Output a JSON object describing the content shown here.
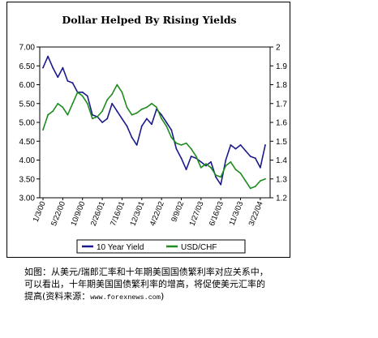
{
  "chart_data": {
    "type": "line",
    "title": "Dollar Helped By Rising Yields",
    "x_tick_labels": [
      "1/3/00",
      "5/22/00",
      "10/9/00",
      "2/26/01",
      "7/16/01",
      "12/3/01",
      "4/22/02",
      "9/9/02",
      "1/27/03",
      "6/16/03",
      "11/3/03",
      "3/22/04"
    ],
    "y_left": {
      "range": [
        3.0,
        7.0
      ],
      "ticks": [
        "3.00",
        "3.50",
        "4.00",
        "4.50",
        "5.00",
        "5.50",
        "6.00",
        "6.50",
        "7.00"
      ]
    },
    "y_right": {
      "range": [
        1.2,
        2.0
      ],
      "ticks": [
        "1.2",
        "1.3",
        "1.4",
        "1.5",
        "1.6",
        "1.7",
        "1.8",
        "1.9",
        "2"
      ]
    },
    "legend_position": "bottom",
    "series": [
      {
        "name": "10 Year Yield",
        "axis": "left",
        "color": "#1a1a8c",
        "x": [
          "1/3/00",
          "2/7/00",
          "3/13/00",
          "4/17/00",
          "5/22/00",
          "6/26/00",
          "7/31/00",
          "9/4/00",
          "10/9/00",
          "11/13/00",
          "12/18/00",
          "1/22/01",
          "2/26/01",
          "4/2/01",
          "5/7/01",
          "6/11/01",
          "7/16/01",
          "8/20/01",
          "9/24/01",
          "10/29/01",
          "12/3/01",
          "1/7/02",
          "2/11/02",
          "3/18/02",
          "4/22/02",
          "5/27/02",
          "7/1/02",
          "8/5/02",
          "9/9/02",
          "10/14/02",
          "11/18/02",
          "12/23/02",
          "1/27/03",
          "3/3/03",
          "4/7/03",
          "5/12/03",
          "6/16/03",
          "7/21/03",
          "8/25/03",
          "9/29/03",
          "11/3/03",
          "12/8/03",
          "1/12/04",
          "2/16/04",
          "3/22/04",
          "4/19/04"
        ],
        "values": [
          6.45,
          6.75,
          6.45,
          6.2,
          6.45,
          6.1,
          6.05,
          5.8,
          5.8,
          5.7,
          5.2,
          5.15,
          5.0,
          5.1,
          5.5,
          5.3,
          5.1,
          4.9,
          4.6,
          4.4,
          4.9,
          5.1,
          4.95,
          5.35,
          5.2,
          5.0,
          4.8,
          4.3,
          4.05,
          3.75,
          4.1,
          4.05,
          3.95,
          3.85,
          3.95,
          3.55,
          3.35,
          4.0,
          4.4,
          4.3,
          4.4,
          4.25,
          4.1,
          4.05,
          3.8,
          4.4
        ]
      },
      {
        "name": "USD/CHF",
        "axis": "right",
        "color": "#1e8c1e",
        "x": [
          "1/3/00",
          "2/7/00",
          "3/13/00",
          "4/17/00",
          "5/22/00",
          "6/26/00",
          "7/31/00",
          "9/4/00",
          "10/9/00",
          "11/13/00",
          "12/18/00",
          "1/22/01",
          "2/26/01",
          "4/2/01",
          "5/7/01",
          "6/11/01",
          "7/16/01",
          "8/20/01",
          "9/24/01",
          "10/29/01",
          "12/3/01",
          "1/7/02",
          "2/11/02",
          "3/18/02",
          "4/22/02",
          "5/27/02",
          "7/1/02",
          "8/5/02",
          "9/9/02",
          "10/14/02",
          "11/18/02",
          "12/23/02",
          "1/27/03",
          "3/3/03",
          "4/7/03",
          "5/12/03",
          "6/16/03",
          "7/21/03",
          "8/25/03",
          "9/29/03",
          "11/3/03",
          "12/8/03",
          "1/12/04",
          "2/16/04",
          "3/22/04",
          "4/19/04"
        ],
        "values": [
          1.56,
          1.64,
          1.66,
          1.7,
          1.68,
          1.64,
          1.7,
          1.76,
          1.74,
          1.7,
          1.62,
          1.63,
          1.66,
          1.72,
          1.75,
          1.8,
          1.76,
          1.68,
          1.64,
          1.65,
          1.67,
          1.68,
          1.7,
          1.68,
          1.62,
          1.58,
          1.52,
          1.49,
          1.48,
          1.49,
          1.46,
          1.42,
          1.36,
          1.38,
          1.36,
          1.32,
          1.31,
          1.37,
          1.39,
          1.35,
          1.33,
          1.29,
          1.25,
          1.26,
          1.29,
          1.3
        ]
      }
    ]
  },
  "caption": {
    "line1": "如图：从美元/瑞郎汇率和十年期美国国债繁利率对应关系中，",
    "line2": "可以看出，十年期美国国债繁利率的增高，将促使美元汇率的",
    "line3_prefix": "提高(资料来源：",
    "line3_source": "www.forexnews.com",
    "line3_suffix": ")"
  }
}
